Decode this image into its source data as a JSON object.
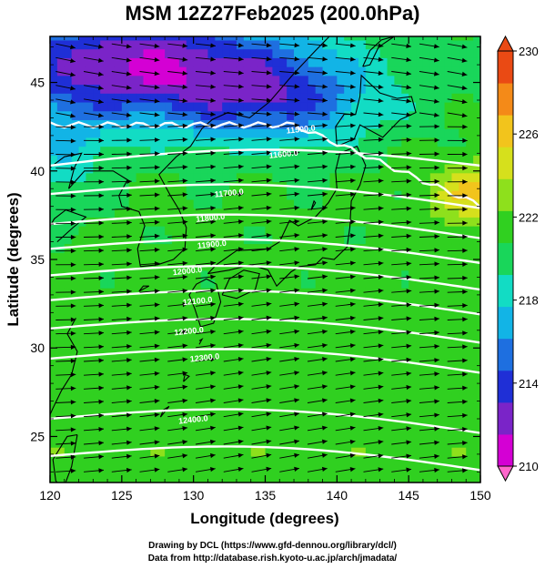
{
  "title": "MSM 12Z27Feb2025 (200.0hPa)",
  "xlabel": "Longitude (degrees)",
  "ylabel": "Latitude  (degrees)",
  "credits": [
    "Drawing by DCL (https://www.gfd-dennou.org/library/dcl/)",
    "Data from http://database.rish.kyoto-u.ac.jp/arch/jmadata/"
  ],
  "colors": {
    "contour": "#ffffff",
    "vector": "#000000",
    "coast": "#000000"
  },
  "chart_data": {
    "type": "heatmap",
    "description_fields": "temperature shading with height contours and wind vectors",
    "x_range": [
      120,
      150
    ],
    "y_range": [
      22.4,
      47.6
    ],
    "x_ticks": [
      "120",
      "125",
      "130",
      "135",
      "140",
      "145",
      "150"
    ],
    "y_ticks": [
      "25",
      "30",
      "35",
      "40",
      "45"
    ],
    "colorbar": {
      "min": 210,
      "max": 230,
      "tick_labels": [
        "230",
        "226",
        "222",
        "218",
        "214",
        "210"
      ],
      "tick_values": [
        230,
        226,
        222,
        218,
        214,
        210
      ],
      "extend": "both",
      "colors": [
        "#d400d4",
        "#7a24c8",
        "#1f2fd6",
        "#1e6fe0",
        "#12b4e6",
        "#12dcc4",
        "#19d65a",
        "#30d020",
        "#8ee01c",
        "#d6e01c",
        "#f2c41c",
        "#f48a18",
        "#ea4a14"
      ]
    },
    "contour_labels": [
      {
        "text": "11500.0",
        "lon": 137.5,
        "lat": 42.2
      },
      {
        "text": "11600.0",
        "lon": 136.3,
        "lat": 40.8
      },
      {
        "text": "11700.0",
        "lon": 132.5,
        "lat": 38.6
      },
      {
        "text": "11800.0",
        "lon": 131.2,
        "lat": 37.2
      },
      {
        "text": "11900.0",
        "lon": 131.3,
        "lat": 35.7
      },
      {
        "text": "12000.0",
        "lon": 129.6,
        "lat": 34.2
      },
      {
        "text": "12100.0",
        "lon": 130.3,
        "lat": 32.5
      },
      {
        "text": "12200.0",
        "lon": 129.7,
        "lat": 30.8
      },
      {
        "text": "12300.0",
        "lon": 130.8,
        "lat": 29.3
      },
      {
        "text": "12400.0",
        "lon": 130.0,
        "lat": 25.8
      }
    ]
  }
}
